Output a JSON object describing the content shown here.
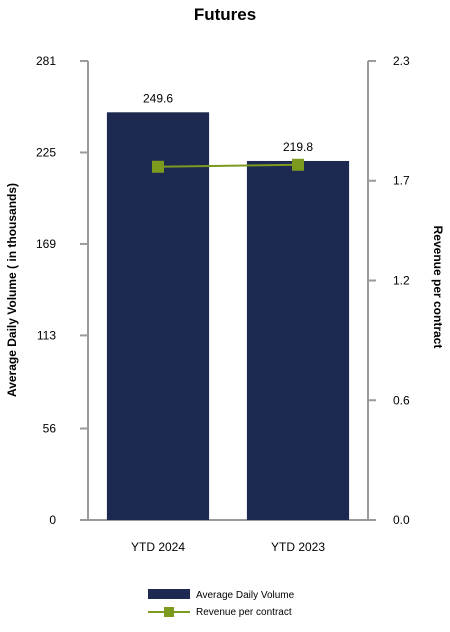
{
  "chart_data": {
    "type": "bar",
    "title": "Futures",
    "categories": [
      "YTD 2024",
      "YTD 2023"
    ],
    "series": [
      {
        "name": "Average Daily Volume",
        "type": "bar",
        "axis": "left",
        "values": [
          249.6,
          219.8
        ],
        "data_labels": [
          "249.6",
          "219.8"
        ],
        "color": "#1e2952"
      },
      {
        "name": "Revenue per contract",
        "type": "line",
        "axis": "right",
        "values": [
          1.77,
          1.78
        ],
        "color": "#7b9a1e"
      }
    ],
    "ylabel_left": "Average Daily Volume ( in thousands)",
    "ylabel_right": "Revenue per contract",
    "ylim_left": [
      0,
      281
    ],
    "ylim_right": [
      0,
      2.3
    ],
    "yticks_left": [
      "281",
      "225",
      "169",
      "113",
      "56",
      "0"
    ],
    "yticks_right": [
      "2.3",
      "1.7",
      "1.2",
      "0.6",
      "0.0"
    ],
    "legend_position": "bottom",
    "grid": false
  }
}
